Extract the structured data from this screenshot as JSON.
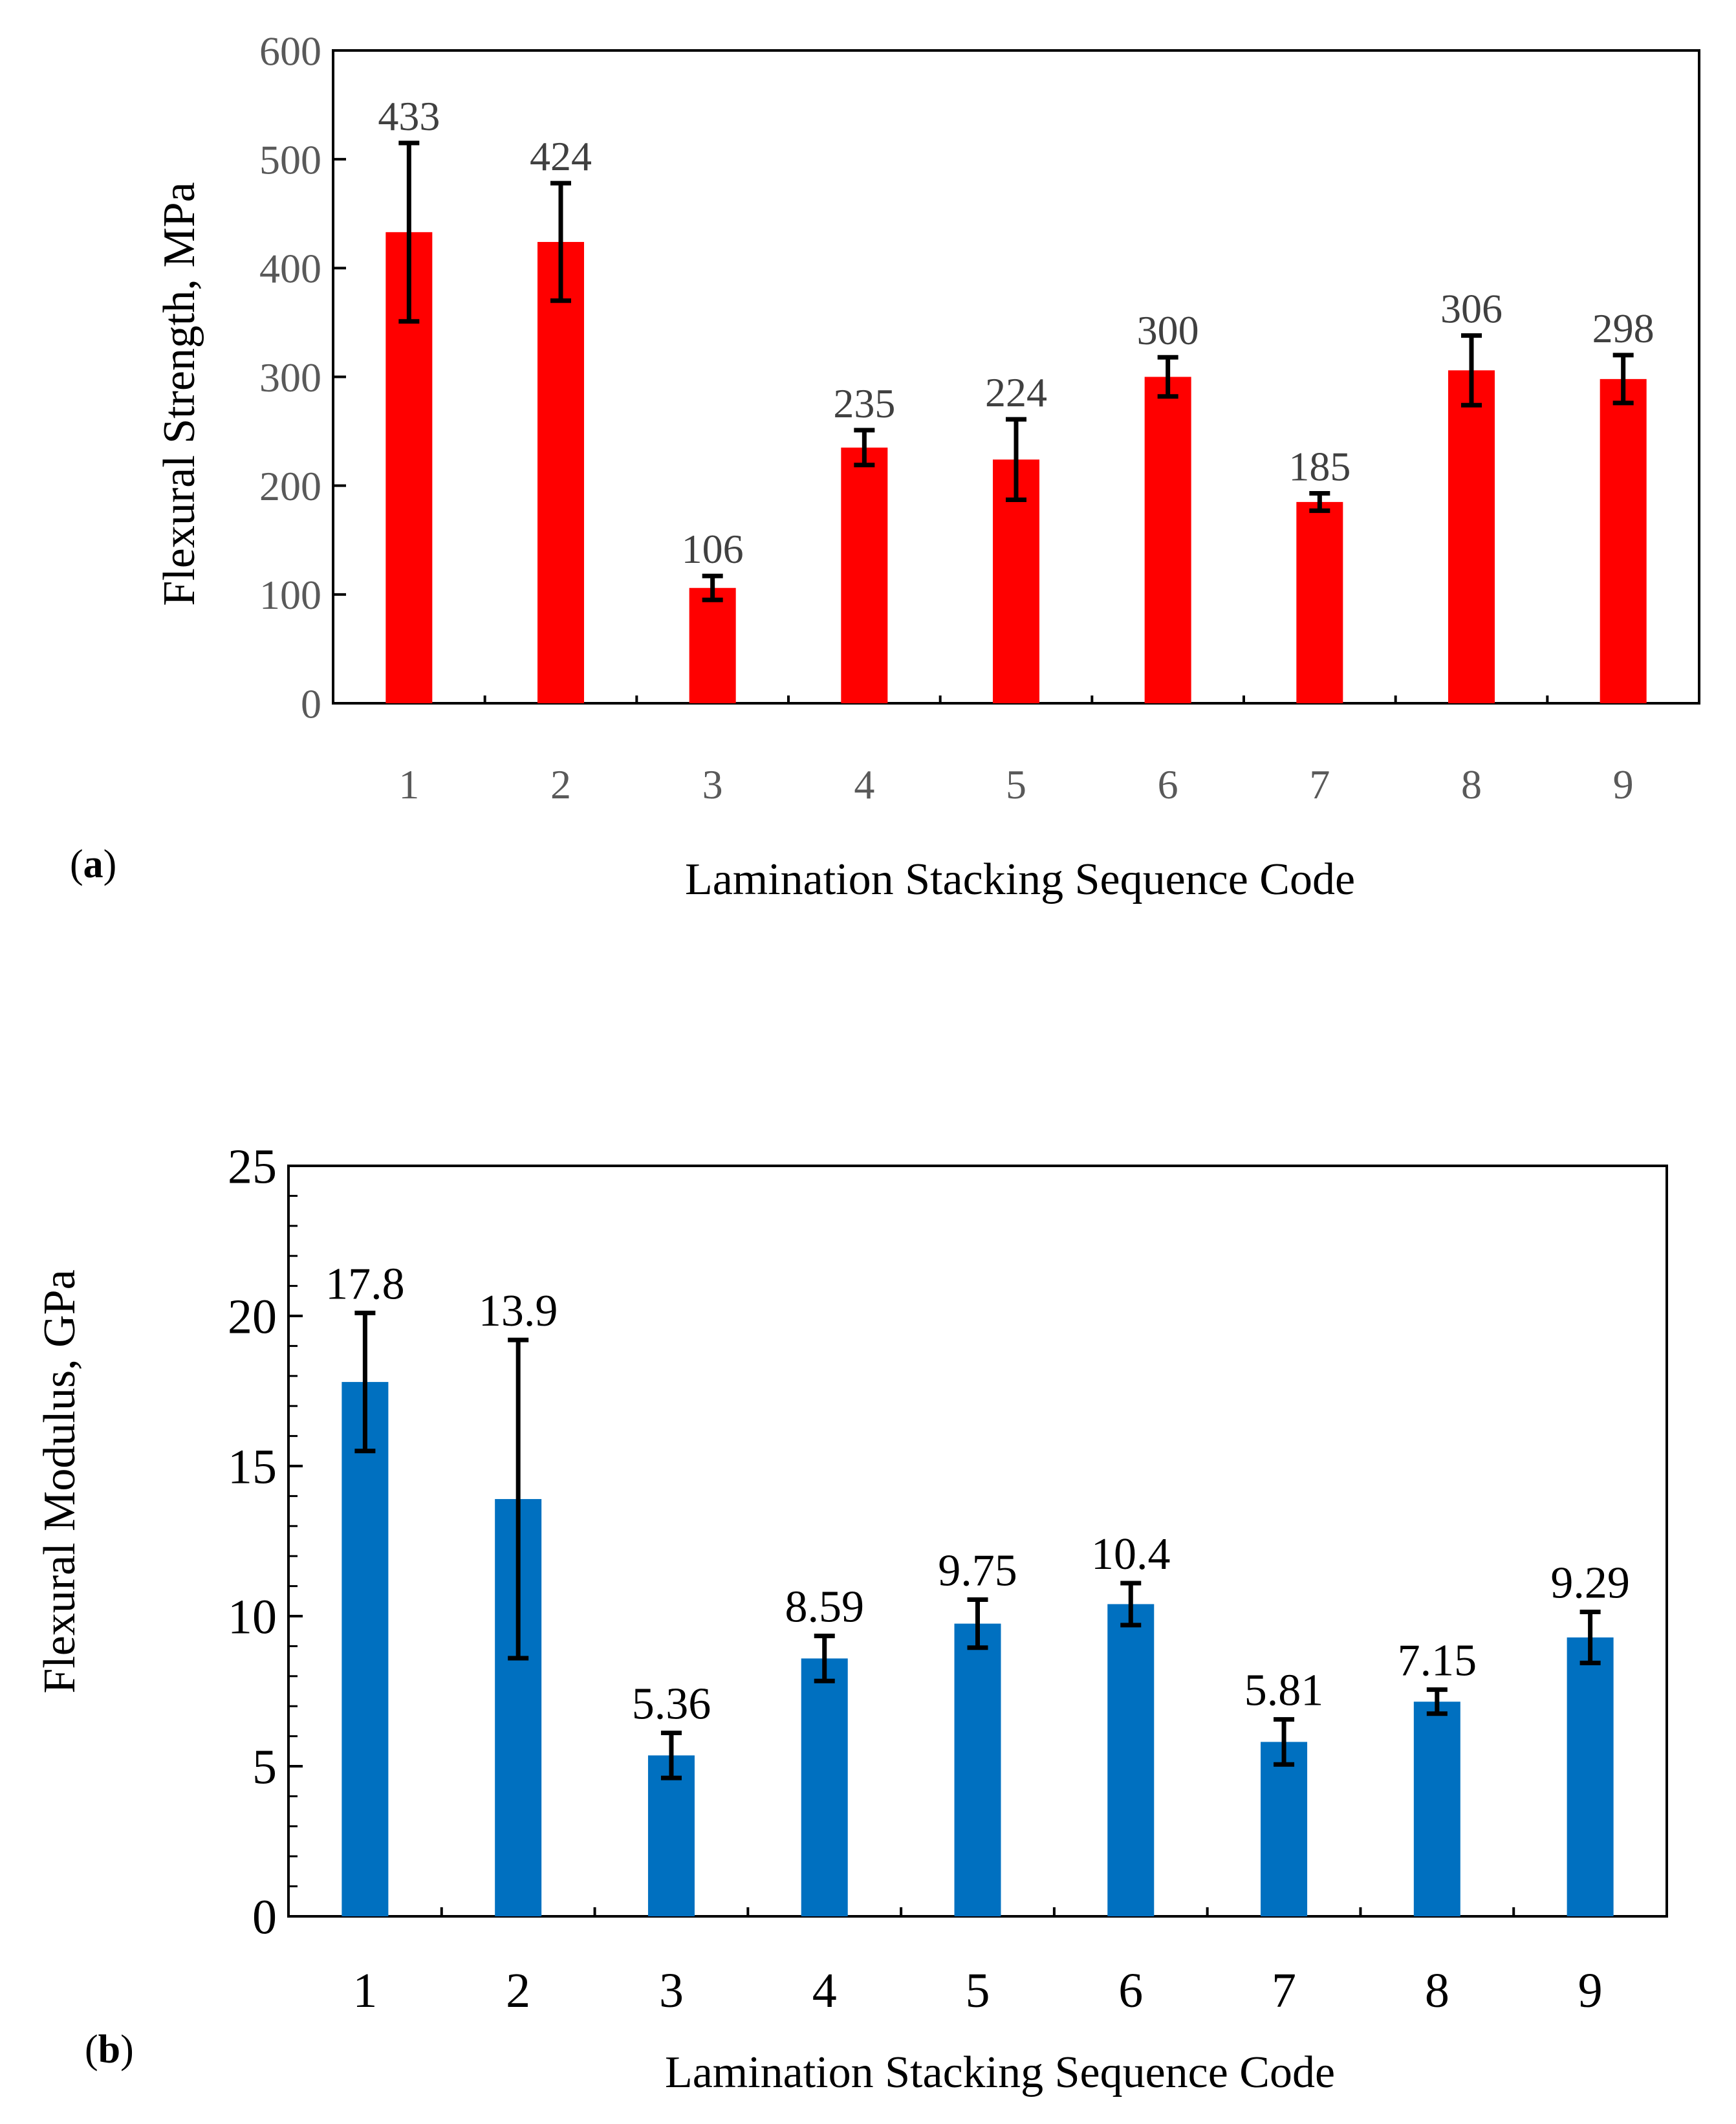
{
  "chart_data": [
    {
      "type": "bar",
      "panel_label": "a",
      "title": "",
      "xlabel": "Lamination Stacking Sequence Code",
      "ylabel": "Flexural  Strength, MPa",
      "categories": [
        "1",
        "2",
        "3",
        "4",
        "5",
        "6",
        "7",
        "8",
        "9"
      ],
      "values": [
        433,
        424,
        106,
        235,
        224,
        300,
        185,
        306,
        298
      ],
      "value_labels": [
        "433",
        "424",
        "106",
        "235",
        "224",
        "300",
        "185",
        "306",
        "298"
      ],
      "error": [
        82,
        54,
        11,
        16,
        37,
        18,
        8,
        32,
        22
      ],
      "ylim": [
        0,
        600
      ],
      "yticks": [
        "0",
        "100",
        "200",
        "300",
        "400",
        "500",
        "600"
      ],
      "bar_color": "#ff0000",
      "error_color": "#000000",
      "grid": false,
      "legend": "none"
    },
    {
      "type": "bar",
      "panel_label": "b",
      "title": "",
      "xlabel": "Lamination Stacking Sequence Code",
      "ylabel": "Flexural  Modulus, GPa",
      "categories": [
        "1",
        "2",
        "3",
        "4",
        "5",
        "6",
        "7",
        "8",
        "9"
      ],
      "values": [
        17.8,
        13.9,
        5.36,
        8.59,
        9.75,
        10.4,
        5.81,
        7.15,
        9.29
      ],
      "value_labels": [
        "17.8",
        "13.9",
        "5.36",
        "8.59",
        "9.75",
        "10.4",
        "5.81",
        "7.15",
        "9.29"
      ],
      "error": [
        2.3,
        5.3,
        0.75,
        0.75,
        0.8,
        0.7,
        0.75,
        0.4,
        0.85
      ],
      "ylim": [
        0,
        25
      ],
      "yticks": [
        "0",
        "5",
        "10",
        "15",
        "20",
        "25"
      ],
      "bar_color": "#0070c0",
      "error_color": "#000000",
      "grid": false,
      "legend": "none"
    }
  ]
}
